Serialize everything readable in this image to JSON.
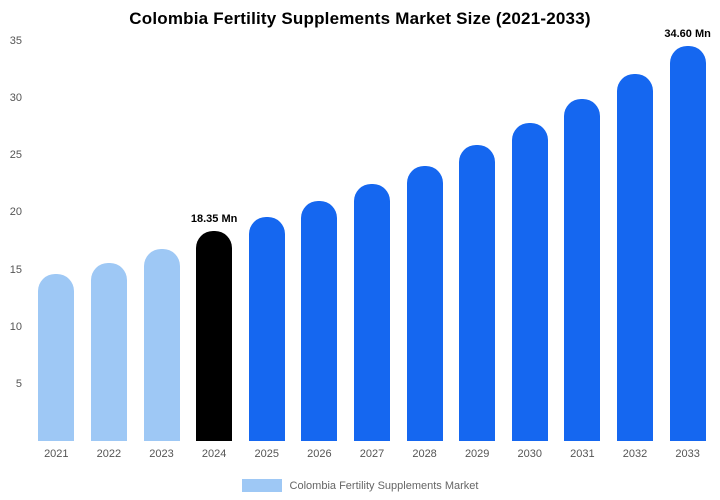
{
  "title": "Colombia Fertility Supplements Market Size (2021-2033)",
  "legend": {
    "label": "Colombia Fertility Supplements Market",
    "swatch_color": "#9EC8F5"
  },
  "colors": {
    "historical_bar": "#9EC8F5",
    "base_year_bar": "#000000",
    "forecast_bar": "#1567F0",
    "axis_text": "#555555",
    "title_text": "#000000"
  },
  "chart_data": {
    "type": "bar",
    "title": "Colombia Fertility Supplements Market Size (2021-2033)",
    "categories": [
      "2021",
      "2022",
      "2023",
      "2024",
      "2025",
      "2026",
      "2027",
      "2028",
      "2029",
      "2030",
      "2031",
      "2032",
      "2033"
    ],
    "values": [
      14.6,
      15.6,
      16.8,
      18.35,
      19.6,
      21.0,
      22.5,
      24.1,
      25.9,
      27.8,
      29.9,
      32.1,
      34.6
    ],
    "bar_colors": [
      "#9EC8F5",
      "#9EC8F5",
      "#9EC8F5",
      "#000000",
      "#1567F0",
      "#1567F0",
      "#1567F0",
      "#1567F0",
      "#1567F0",
      "#1567F0",
      "#1567F0",
      "#1567F0",
      "#1567F0"
    ],
    "annotations": [
      {
        "category": "2024",
        "text": "18.35 Mn"
      },
      {
        "category": "2033",
        "text": "34.60 Mn"
      }
    ],
    "xlabel": "",
    "ylabel": "",
    "ylim": [
      0,
      35
    ],
    "yticks": [
      5,
      10,
      15,
      20,
      25,
      30,
      35
    ],
    "grid": false,
    "legend_position": "bottom"
  }
}
